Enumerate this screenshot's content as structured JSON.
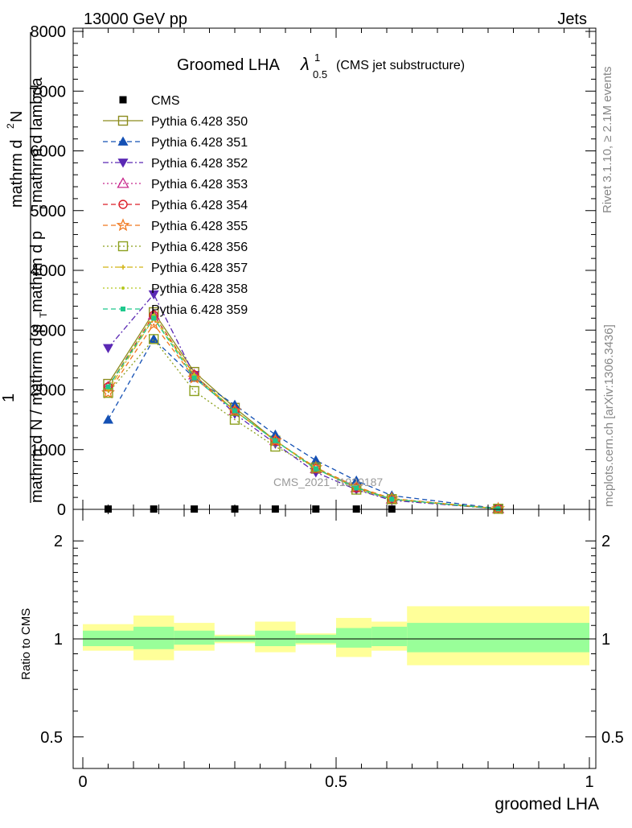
{
  "header": {
    "left": "13000 GeV pp",
    "right": "Jets"
  },
  "side_labels": {
    "rivet": "Rivet 3.1.10, ≥ 2.1M events",
    "mcplots": "mcplots.cern.ch [arXiv:1306.3436]"
  },
  "watermark": "CMS_2021_I1920187",
  "chart_data": [
    {
      "type": "line",
      "title_main": "Groomed LHA",
      "title_lambda": "λ",
      "title_sup": "1",
      "title_sub": "0.5",
      "title_note": "(CMS jet substructure)",
      "ylabel_numerator": "mathrm d²N",
      "ylabel_denominator": "mathrm d p_T mathrm d lambda",
      "ylabel_prefix_num": "1",
      "ylabel_prefix_den": "mathrm d N / mathrm d p_T",
      "ylabel_parts": {
        "num_pre": "mathrm d",
        "num_sup": "2",
        "num_post": "N",
        "den_pre": "mathrm d p",
        "den_sub": "T",
        "den_post": " mathrm d lambda",
        "pre_num": "1",
        "pre_den_pre": "mathrm d N / mathrm d p",
        "pre_den_sub": "T"
      },
      "xlim": [
        0,
        1
      ],
      "ylim": [
        0,
        8000
      ],
      "yticks": [
        0,
        1000,
        2000,
        3000,
        4000,
        5000,
        6000,
        7000,
        8000
      ],
      "ytick_labels": [
        "0",
        "1000",
        "2000",
        "3000",
        "4000",
        "5000",
        "6000",
        "7000",
        "8000"
      ],
      "x": [
        0.05,
        0.14,
        0.22,
        0.3,
        0.38,
        0.46,
        0.54,
        0.61,
        0.82
      ],
      "series": [
        {
          "name": "CMS",
          "color": "#000000",
          "marker": "square-filled",
          "dash": "none",
          "values": [
            5,
            5,
            5,
            5,
            5,
            5,
            5,
            5,
            5
          ]
        },
        {
          "name": "Pythia 6.428 350",
          "color": "#8c8c1e",
          "marker": "square-open",
          "dash": "solid",
          "values": [
            2100,
            3300,
            2300,
            1700,
            1150,
            680,
            370,
            170,
            10
          ]
        },
        {
          "name": "Pythia 6.428 351",
          "color": "#1450b4",
          "marker": "triangle-up-filled",
          "dash": "dashed",
          "values": [
            1500,
            2850,
            2200,
            1750,
            1250,
            820,
            480,
            230,
            15
          ]
        },
        {
          "name": "Pythia 6.428 352",
          "color": "#5a28b4",
          "marker": "triangle-down-filled",
          "dash": "dashdot",
          "values": [
            2700,
            3600,
            2250,
            1600,
            1100,
            620,
            330,
            150,
            8
          ]
        },
        {
          "name": "Pythia 6.428 353",
          "color": "#c8288c",
          "marker": "triangle-up-open",
          "dash": "dotted",
          "values": [
            2050,
            3250,
            2250,
            1650,
            1150,
            680,
            360,
            170,
            10
          ]
        },
        {
          "name": "Pythia 6.428 354",
          "color": "#dc1e28",
          "marker": "circle-open",
          "dash": "dashed",
          "values": [
            2050,
            3250,
            2250,
            1650,
            1150,
            680,
            360,
            170,
            10
          ]
        },
        {
          "name": "Pythia 6.428 355",
          "color": "#f0781e",
          "marker": "star-open",
          "dash": "dashed",
          "values": [
            1950,
            3100,
            2200,
            1650,
            1150,
            700,
            380,
            180,
            11
          ]
        },
        {
          "name": "Pythia 6.428 356",
          "color": "#8ca01e",
          "marker": "square-open",
          "dash": "dotted",
          "values": [
            1950,
            2850,
            1980,
            1500,
            1050,
            700,
            330,
            170,
            10
          ]
        },
        {
          "name": "Pythia 6.428 357",
          "color": "#d2b414",
          "marker": "cross-small",
          "dash": "dashdot",
          "values": [
            2000,
            3200,
            2250,
            1650,
            1150,
            680,
            360,
            170,
            10
          ]
        },
        {
          "name": "Pythia 6.428 358",
          "color": "#b4c81e",
          "marker": "dot-small",
          "dash": "dotted",
          "values": [
            2050,
            3250,
            2250,
            1650,
            1150,
            680,
            360,
            170,
            10
          ]
        },
        {
          "name": "Pythia 6.428 359",
          "color": "#1ec88c",
          "marker": "square-filled-small",
          "dash": "dashed",
          "values": [
            2050,
            3200,
            2200,
            1650,
            1150,
            680,
            360,
            170,
            10
          ]
        }
      ]
    },
    {
      "type": "area",
      "ylabel": "Ratio to CMS",
      "xlabel": "groomed LHA",
      "xlim": [
        0,
        1
      ],
      "ylim": [
        0.4,
        2.5
      ],
      "yscale": "log",
      "yticks": [
        0.5,
        1,
        2
      ],
      "ytick_labels": [
        "0.5",
        "1",
        "2"
      ],
      "xticks": [
        0,
        0.5,
        1
      ],
      "xtick_labels": [
        "0",
        "0.5",
        "1"
      ],
      "bins": [
        0,
        0.1,
        0.18,
        0.26,
        0.34,
        0.42,
        0.5,
        0.57,
        0.64,
        1.0
      ],
      "inner_band": {
        "color": "#99ff99",
        "lo": [
          0.95,
          0.93,
          0.96,
          0.98,
          0.95,
          0.97,
          0.94,
          0.95,
          0.91
        ],
        "hi": [
          1.06,
          1.09,
          1.06,
          1.02,
          1.06,
          1.03,
          1.08,
          1.09,
          1.12
        ]
      },
      "outer_band": {
        "color": "#ffff99",
        "lo": [
          0.92,
          0.86,
          0.92,
          0.97,
          0.91,
          0.96,
          0.88,
          0.92,
          0.83
        ],
        "hi": [
          1.11,
          1.18,
          1.12,
          1.03,
          1.13,
          1.04,
          1.16,
          1.13,
          1.26
        ]
      },
      "reference": 1
    }
  ]
}
